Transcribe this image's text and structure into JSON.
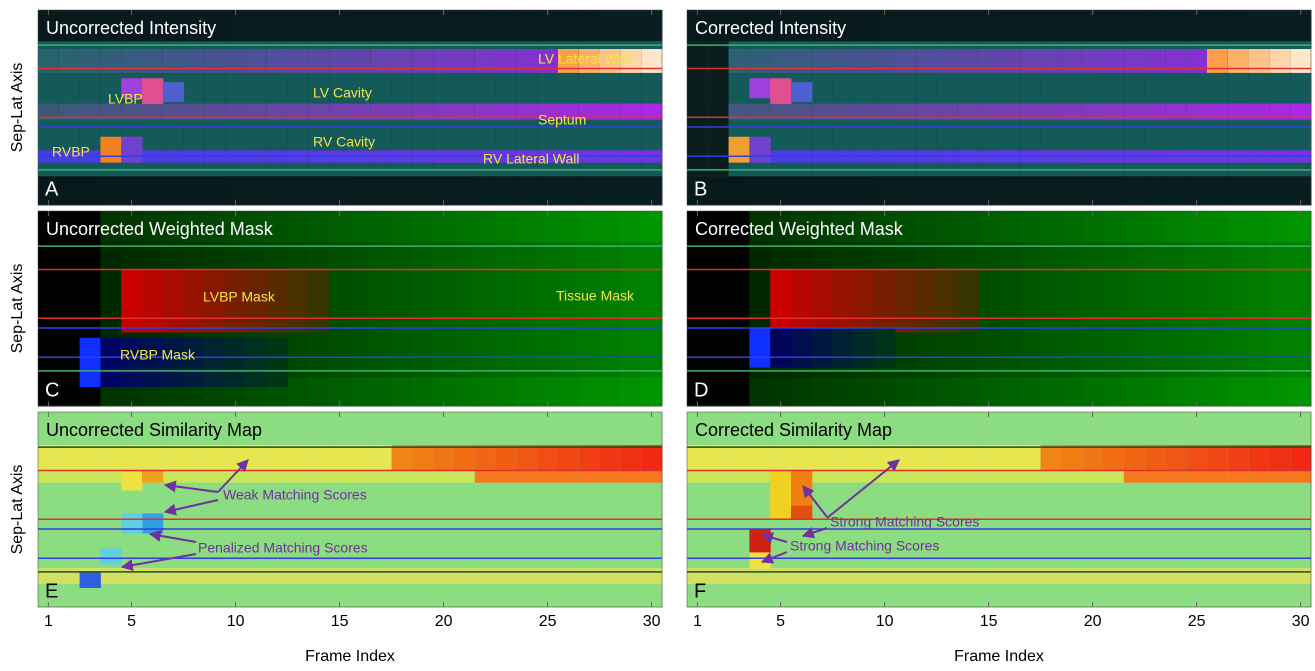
{
  "y_label": "Sep-Lat Axis",
  "x_axis": {
    "label": "Frame Index",
    "ticks": [
      1,
      5,
      10,
      15,
      20,
      25,
      30
    ],
    "lim": [
      0.5,
      30.5
    ]
  },
  "panels": [
    {
      "letter": "A",
      "title": "Uncorrected Intensity",
      "annotations": [
        "LV Lateral Wall",
        "LVBP",
        "LV Cavity",
        "Septum",
        "RV Cavity",
        "RVBP",
        "RV Lateral Wall"
      ]
    },
    {
      "letter": "B",
      "title": "Corrected Intensity"
    },
    {
      "letter": "C",
      "title": "Uncorrected Weighted Mask",
      "annotations": [
        "LVBP Mask",
        "Tissue Mask",
        "RVBP Mask"
      ]
    },
    {
      "letter": "D",
      "title": "Corrected Weighted Mask"
    },
    {
      "letter": "E",
      "title": "Uncorrected Similarity Map",
      "annotations": [
        "Weak Matching Scores",
        "Penalized Matching Scores"
      ]
    },
    {
      "letter": "F",
      "title": "Corrected Similarity Map",
      "annotations": [
        "Strong Matching Scores",
        "Strong Matching Scores"
      ]
    }
  ]
}
